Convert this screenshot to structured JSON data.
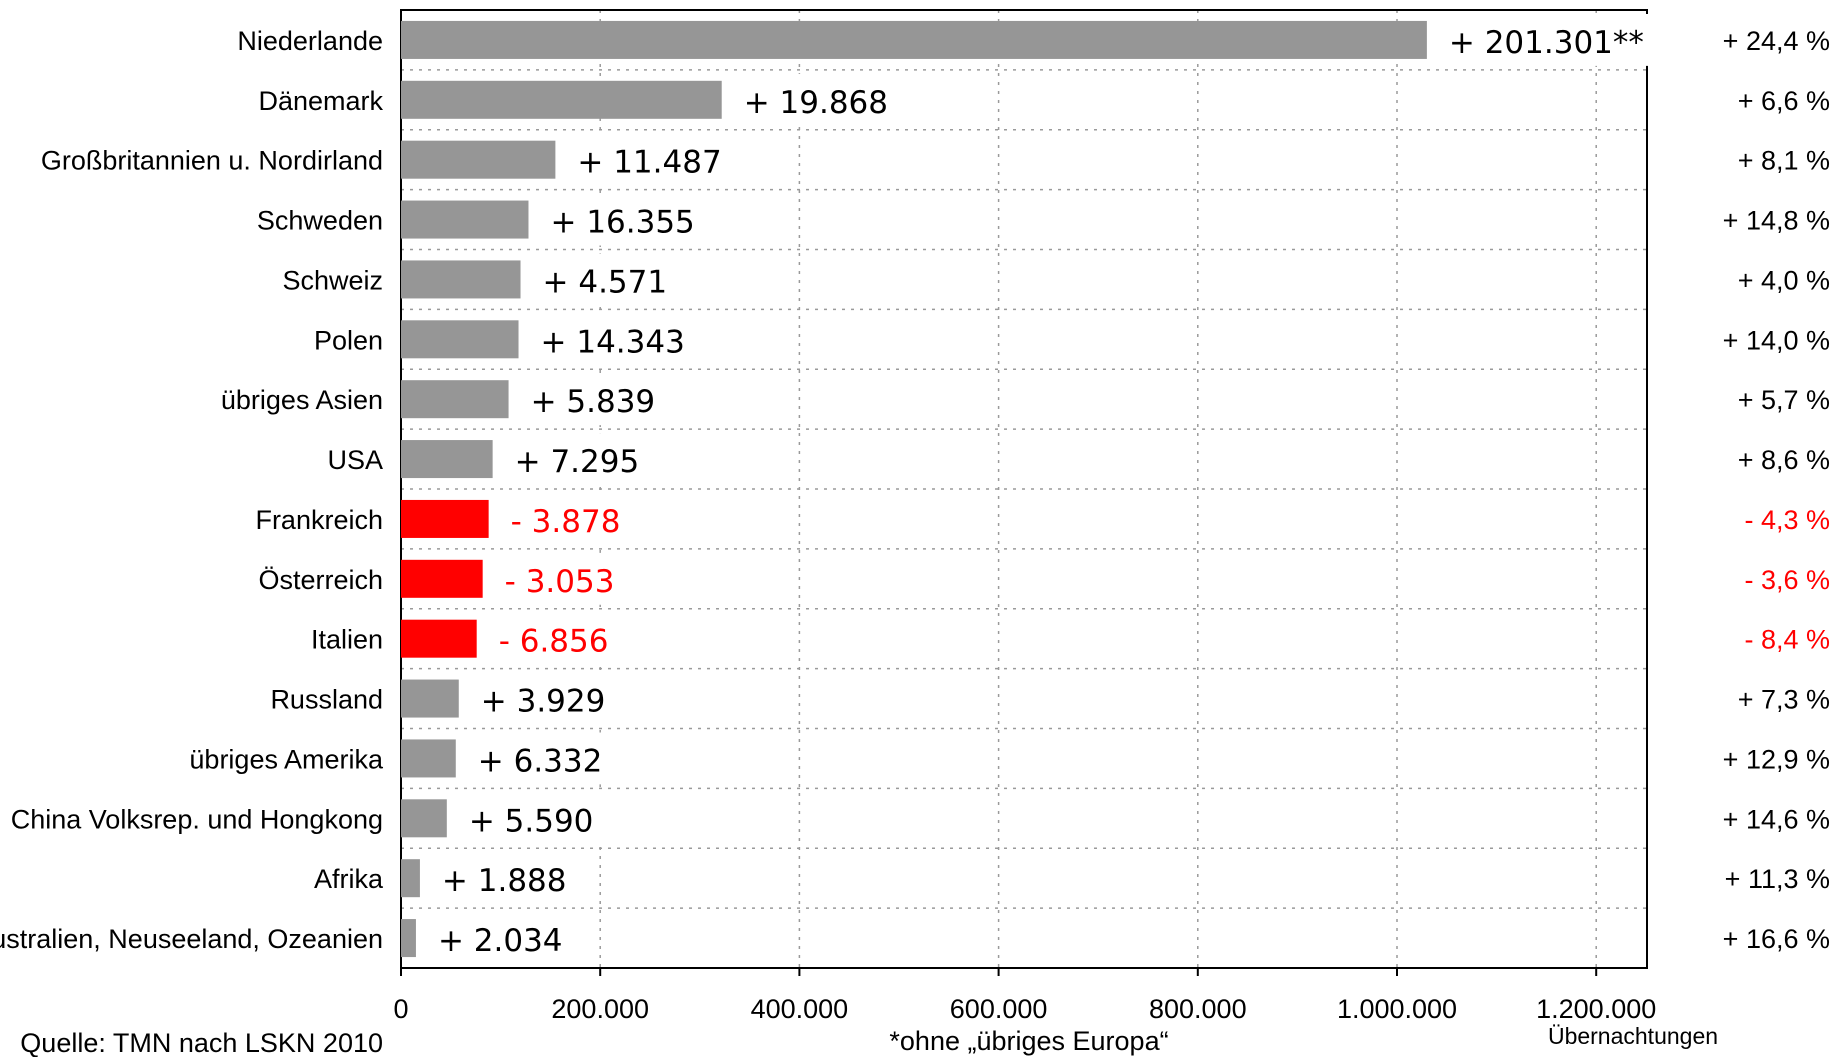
{
  "chart_data": {
    "type": "bar",
    "orientation": "horizontal",
    "categories": [
      "Niederlande",
      "Dänemark",
      "Großbritannien u. Nordirland",
      "Schweden",
      "Schweiz",
      "Polen",
      "übriges Asien",
      "USA",
      "Frankreich",
      "Österreich",
      "Italien",
      "Russland",
      "übriges Amerika",
      "China Volksrep. und Hongkong",
      "Afrika",
      "Australien, Neuseeland, Ozeanien"
    ],
    "values": [
      1030000,
      322000,
      155000,
      128000,
      120000,
      118000,
      108000,
      92000,
      88000,
      82000,
      76000,
      58000,
      55000,
      46000,
      19000,
      15000
    ],
    "change_labels": [
      "+ 201.301**",
      "+ 19.868",
      "+ 11.487",
      "+ 16.355",
      "+ 4.571",
      "+ 14.343",
      "+ 5.839",
      "+ 7.295",
      "- 3.878",
      "- 3.053",
      "- 6.856",
      "+ 3.929",
      "+ 6.332",
      "+ 5.590",
      "+ 1.888",
      "+ 2.034"
    ],
    "percent_labels": [
      "+ 24,4 %",
      "+ 6,6 %",
      "+ 8,1 %",
      "+ 14,8 %",
      "+ 4,0 %",
      "+ 14,0 %",
      "+ 5,7 %",
      "+ 8,6 %",
      "- 4,3 %",
      "- 3,6 %",
      "- 8,4 %",
      "+ 7,3 %",
      "+ 12,9 %",
      "+ 14,6 %",
      "+ 11,3 %",
      "+ 16,6 %"
    ],
    "negative": [
      false,
      false,
      false,
      false,
      false,
      false,
      false,
      false,
      true,
      true,
      true,
      false,
      false,
      false,
      false,
      false
    ],
    "xlim": [
      0,
      1250000
    ],
    "xticks": [
      0,
      200000,
      400000,
      600000,
      800000,
      1000000,
      1200000
    ],
    "xtick_labels": [
      "0",
      "200.000",
      "400.000",
      "600.000",
      "800.000",
      "1.000.000",
      "1.200.000"
    ],
    "xlabel": "Übernachtungen",
    "grid": true,
    "colors": {
      "positive": "#969696",
      "negative": "#ff0000",
      "negative_text": "#ff0000"
    }
  },
  "notes": {
    "source": "Quelle: TMN nach LSKN 2010",
    "footnote": "*ohne „übriges Europa“"
  }
}
